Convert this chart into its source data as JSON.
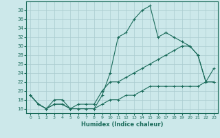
{
  "xlabel": "Humidex (Indice chaleur)",
  "x": [
    0,
    1,
    2,
    3,
    4,
    5,
    6,
    7,
    8,
    9,
    10,
    11,
    12,
    13,
    14,
    15,
    16,
    17,
    18,
    19,
    20,
    21,
    22,
    23
  ],
  "line1": [
    19,
    17,
    16,
    17,
    17,
    16,
    16,
    16,
    16,
    19,
    24,
    32,
    33,
    36,
    38,
    39,
    32,
    33,
    32,
    31,
    30,
    28,
    22,
    25
  ],
  "line2": [
    19,
    17,
    16,
    18,
    18,
    16,
    17,
    17,
    17,
    20,
    22,
    22,
    23,
    24,
    25,
    26,
    27,
    28,
    29,
    30,
    30,
    28,
    22,
    22
  ],
  "line3": [
    19,
    17,
    16,
    17,
    17,
    16,
    16,
    16,
    16,
    17,
    18,
    18,
    19,
    19,
    20,
    21,
    21,
    21,
    21,
    21,
    21,
    21,
    22,
    22
  ],
  "color": "#1a6b5a",
  "bg_color": "#cce8ea",
  "grid_color": "#aaccd0",
  "ylim": [
    15,
    40
  ],
  "xlim": [
    -0.5,
    23.5
  ],
  "yticks": [
    16,
    18,
    20,
    22,
    24,
    26,
    28,
    30,
    32,
    34,
    36,
    38
  ],
  "xticks": [
    0,
    1,
    2,
    3,
    4,
    5,
    6,
    7,
    8,
    9,
    10,
    11,
    12,
    13,
    14,
    15,
    16,
    17,
    18,
    19,
    20,
    21,
    22,
    23
  ]
}
